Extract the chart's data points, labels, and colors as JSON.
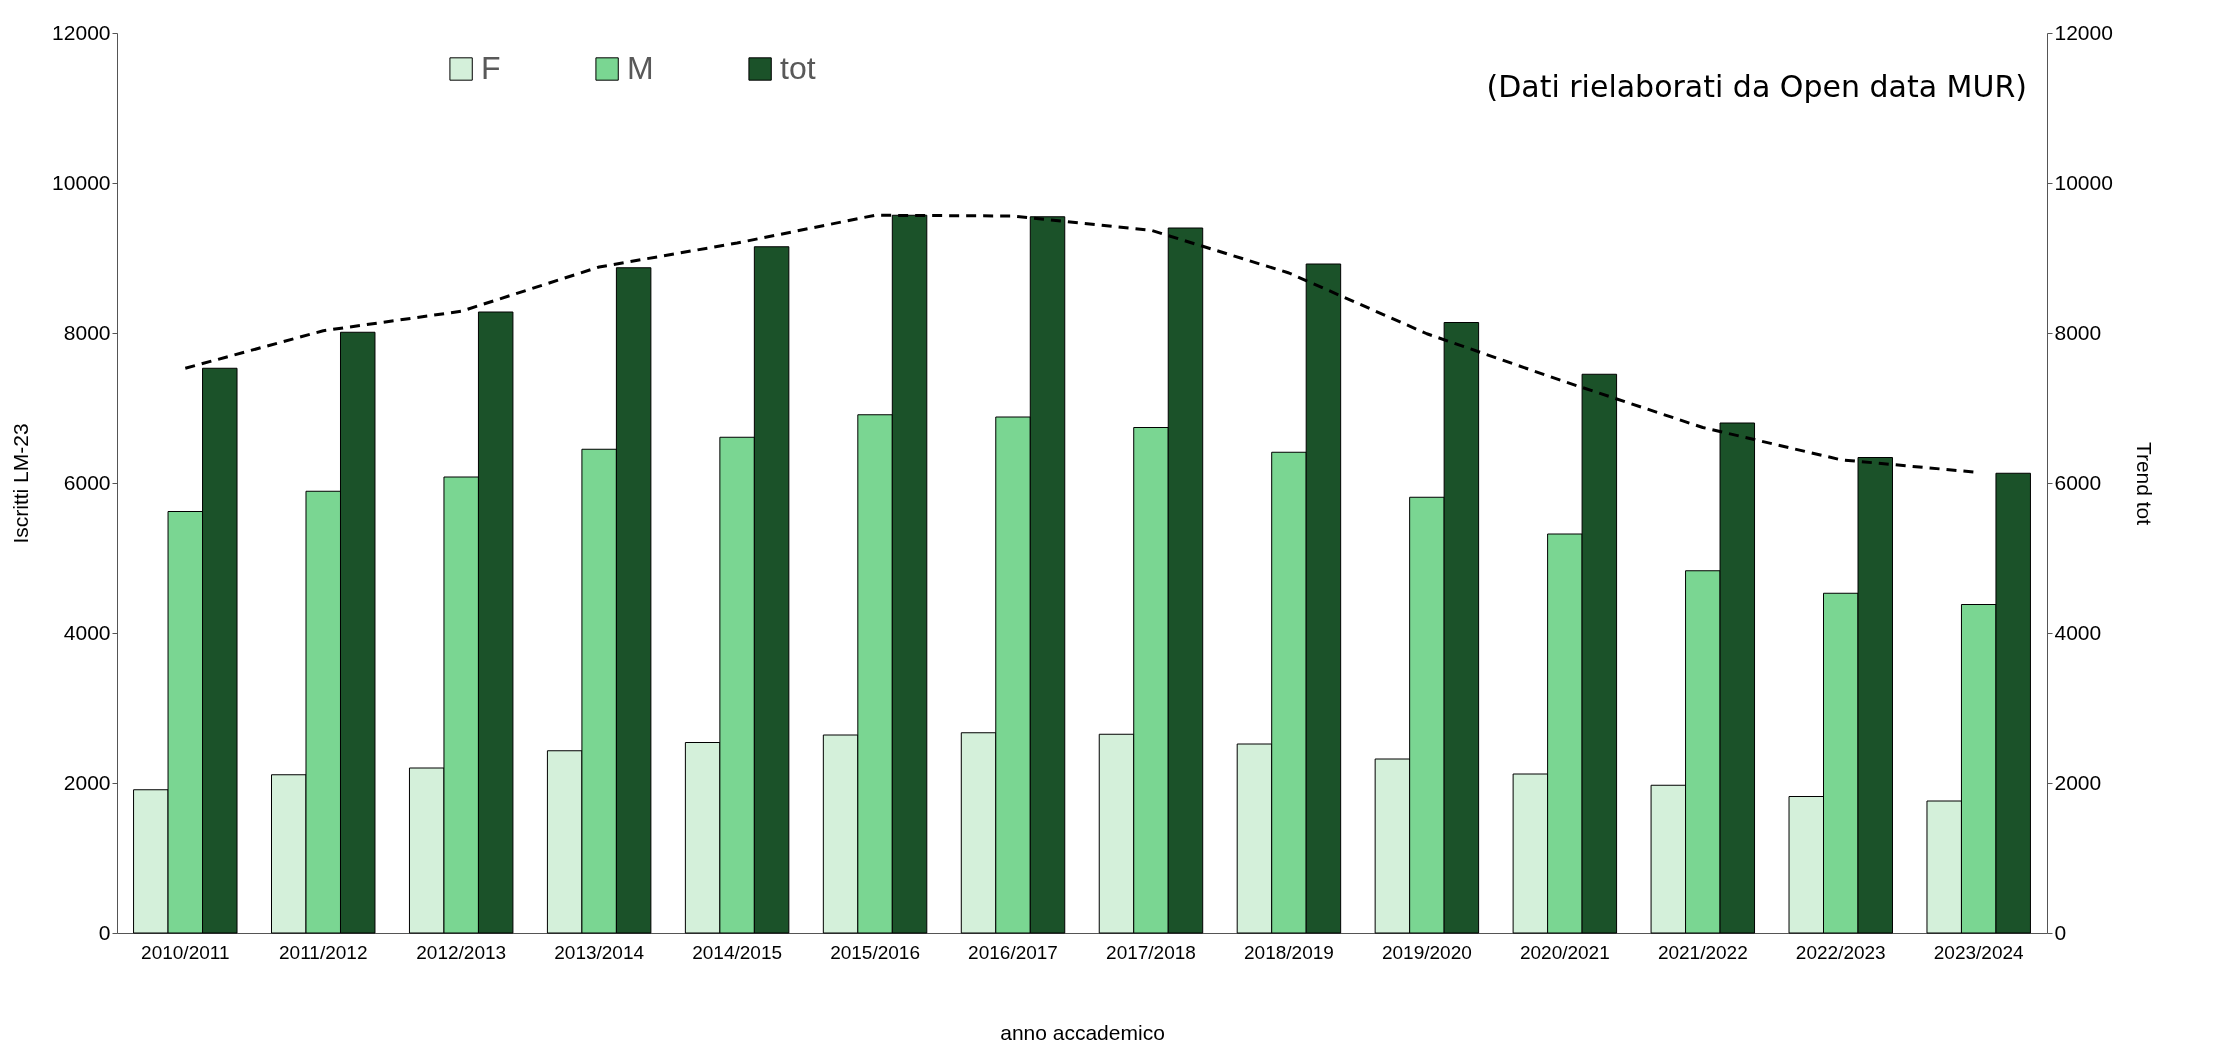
{
  "chart_data": {
    "type": "bar",
    "xlabel": "anno accademico",
    "ylabel": "Iscritti LM-23",
    "y2label": "Trend tot",
    "categories": [
      "2010/2011",
      "2011/2012",
      "2012/2013",
      "2013/2014",
      "2014/2015",
      "2015/2016",
      "2016/2017",
      "2017/2018",
      "2018/2019",
      "2019/2020",
      "2020/2021",
      "2021/2022",
      "2022/2023",
      "2023/2024"
    ],
    "series": [
      {
        "name": "F",
        "color": "#d4f0da",
        "values": [
          1910,
          2110,
          2200,
          2430,
          2540,
          2640,
          2670,
          2650,
          2520,
          2320,
          2120,
          1970,
          1820,
          1760
        ]
      },
      {
        "name": "M",
        "color": "#7ad692",
        "values": [
          5620,
          5890,
          6080,
          6450,
          6610,
          6910,
          6880,
          6740,
          6410,
          5810,
          5320,
          4830,
          4530,
          4380
        ]
      },
      {
        "name": "tot",
        "color": "#1b5229",
        "values": [
          7530,
          8010,
          8280,
          8870,
          9150,
          9570,
          9550,
          9400,
          8920,
          8140,
          7450,
          6800,
          6340,
          6130
        ]
      },
      {
        "type": "line",
        "axis": "y2",
        "color": "#000000",
        "line_style": "dashed",
        "values": [
          7530,
          8030,
          8290,
          8880,
          9200,
          9570,
          9560,
          9370,
          8800,
          7990,
          7350,
          6740,
          6310,
          6140
        ]
      }
    ],
    "ylim": [
      0,
      12000
    ],
    "yticks": [
      0,
      2000,
      4000,
      6000,
      8000,
      10000,
      12000
    ],
    "y2lim": [
      0,
      12000
    ],
    "y2ticks": [
      0,
      2000,
      4000,
      6000,
      8000,
      10000,
      12000
    ],
    "legend": "top",
    "annotations": [
      "(Dati rielaborati da Open data MUR)"
    ]
  }
}
